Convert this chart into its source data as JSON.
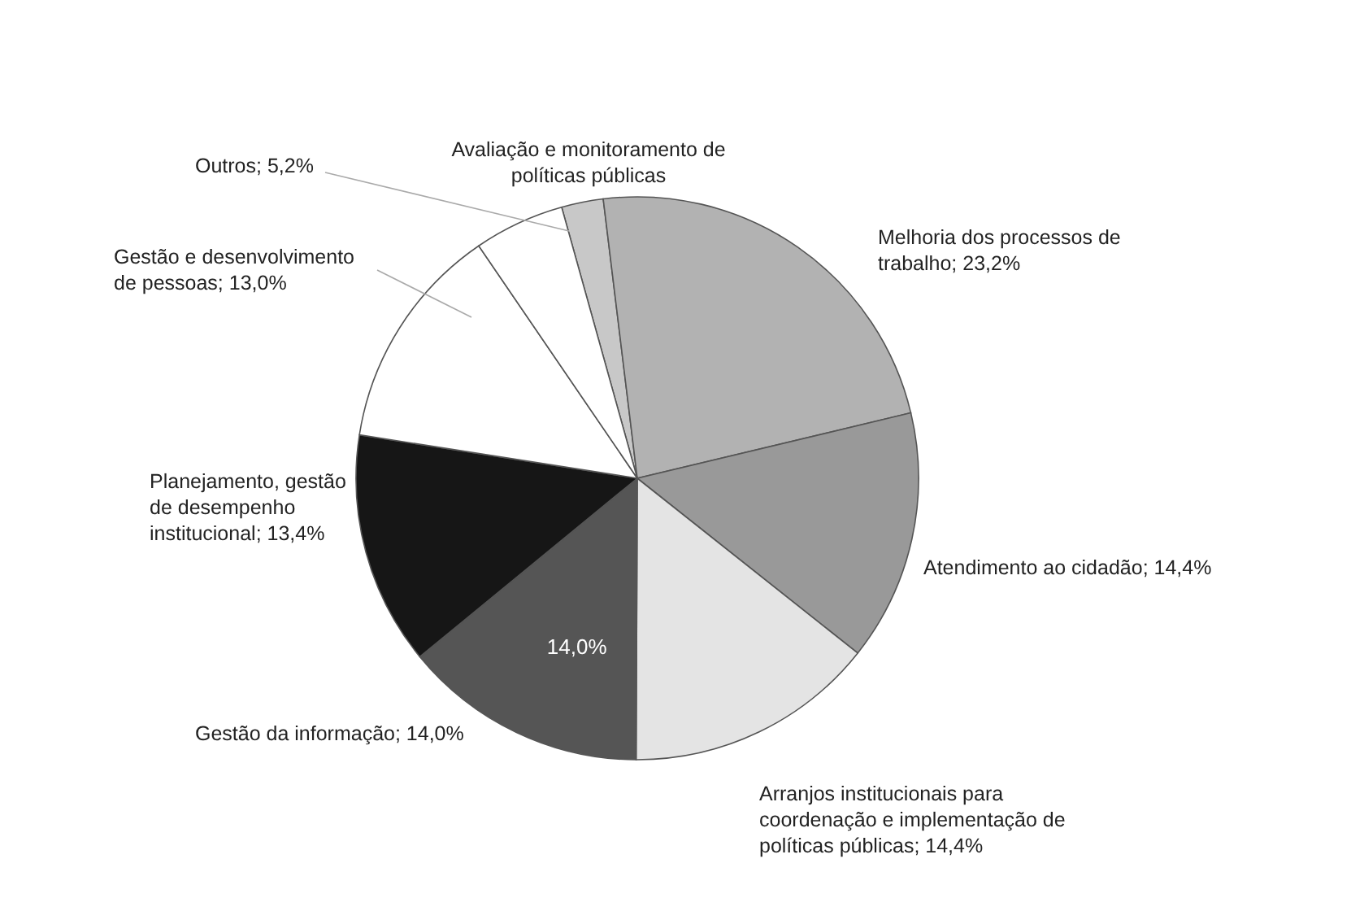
{
  "chart_data": {
    "type": "pie",
    "categories": [
      "Avaliação e monitoramento de políticas públicas",
      "Melhoria dos processos de trabalho",
      "Atendimento ao cidadão",
      "Arranjos institucionais para coordenação e implementação de políticas públicas",
      "Gestão da informação",
      "Planejamento, gestão de desempenho institucional",
      "Gestão e desenvolvimento de pessoas",
      "Outros"
    ],
    "values": [
      2.4,
      23.2,
      14.4,
      14.4,
      14.0,
      13.4,
      13.0,
      5.2
    ],
    "value_labels": [
      null,
      "23,2%",
      "14,4%",
      "14,4%",
      "14,0%",
      "13,4%",
      "13,0%",
      "5,2%"
    ],
    "colors": [
      "#c8c8c8",
      "#b2b2b2",
      "#999999",
      "#e4e4e4",
      "#555555",
      "#161616",
      "#ffffff",
      "#ffffff"
    ],
    "annotations": [
      "14,0%"
    ]
  }
}
